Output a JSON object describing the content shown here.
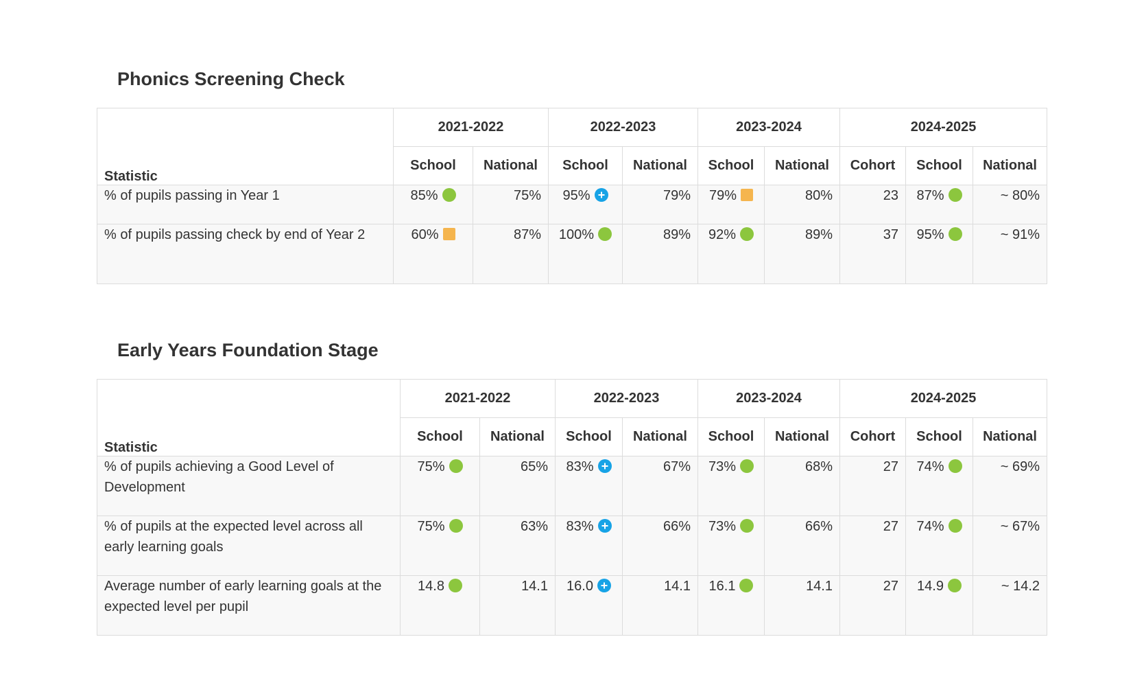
{
  "phonics": {
    "title": "Phonics Screening Check",
    "statistic_header": "Statistic",
    "years": [
      "2021-2022",
      "2022-2023",
      "2023-2024",
      "2024-2025"
    ],
    "sub_headers": [
      "School",
      "National",
      "School",
      "National",
      "School",
      "National",
      "Cohort",
      "School",
      "National"
    ],
    "rows": [
      {
        "label": "% of pupils passing in Year 1",
        "y2122_school": "85%",
        "y2122_school_icon": "green-circle-icon",
        "y2122_national": "75%",
        "y2223_school": "95%",
        "y2223_school_icon": "blue-plus-icon",
        "y2223_national": "79%",
        "y2324_school": "79%",
        "y2324_school_icon": "amber-square-icon",
        "y2324_national": "80%",
        "y2425_cohort": "23",
        "y2425_school": "87%",
        "y2425_school_icon": "green-circle-icon",
        "y2425_national": "~ 80%"
      },
      {
        "label": "% of pupils passing check by end of Year 2",
        "y2122_school": "60%",
        "y2122_school_icon": "amber-square-icon",
        "y2122_national": "87%",
        "y2223_school": "100%",
        "y2223_school_icon": "green-circle-icon",
        "y2223_national": "89%",
        "y2324_school": "92%",
        "y2324_school_icon": "green-circle-icon",
        "y2324_national": "89%",
        "y2425_cohort": "37",
        "y2425_school": "95%",
        "y2425_school_icon": "green-circle-icon",
        "y2425_national": "~ 91%"
      }
    ]
  },
  "eyfs": {
    "title": "Early Years Foundation Stage",
    "statistic_header": "Statistic",
    "years": [
      "2021-2022",
      "2022-2023",
      "2023-2024",
      "2024-2025"
    ],
    "sub_headers": [
      "School",
      "National",
      "School",
      "National",
      "School",
      "National",
      "Cohort",
      "School",
      "National"
    ],
    "rows": [
      {
        "label": "% of pupils achieving a Good Level of Development",
        "y2122_school": "75%",
        "y2122_school_icon": "green-circle-icon",
        "y2122_national": "65%",
        "y2223_school": "83%",
        "y2223_school_icon": "blue-plus-icon",
        "y2223_national": "67%",
        "y2324_school": "73%",
        "y2324_school_icon": "green-circle-icon",
        "y2324_national": "68%",
        "y2425_cohort": "27",
        "y2425_school": "74%",
        "y2425_school_icon": "green-circle-icon",
        "y2425_national": "~ 69%"
      },
      {
        "label": "% of pupils at the expected level across all early learning goals",
        "y2122_school": "75%",
        "y2122_school_icon": "green-circle-icon",
        "y2122_national": "63%",
        "y2223_school": "83%",
        "y2223_school_icon": "blue-plus-icon",
        "y2223_national": "66%",
        "y2324_school": "73%",
        "y2324_school_icon": "green-circle-icon",
        "y2324_national": "66%",
        "y2425_cohort": "27",
        "y2425_school": "74%",
        "y2425_school_icon": "green-circle-icon",
        "y2425_national": "~ 67%"
      },
      {
        "label": "Average number of early learning goals at the expected level per pupil",
        "y2122_school": "14.8",
        "y2122_school_icon": "green-circle-icon",
        "y2122_national": "14.1",
        "y2223_school": "16.0",
        "y2223_school_icon": "blue-plus-icon",
        "y2223_national": "14.1",
        "y2324_school": "16.1",
        "y2324_school_icon": "green-circle-icon",
        "y2324_national": "14.1",
        "y2425_cohort": "27",
        "y2425_school": "14.9",
        "y2425_school_icon": "green-circle-icon",
        "y2425_national": "~ 14.2"
      }
    ]
  },
  "icon_colors": {
    "green-circle-icon": "#8cc63e",
    "blue-plus-icon": "#17a3e6",
    "amber-square-icon": "#f5b54e"
  }
}
